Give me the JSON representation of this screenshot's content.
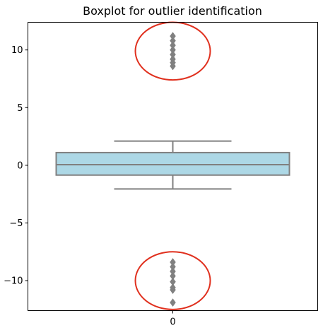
{
  "chart_data": {
    "type": "boxplot",
    "title": "Boxplot for outlier identification",
    "xlabel": "",
    "ylabel": "",
    "categories": [
      "0"
    ],
    "ylim": [
      -12.6,
      12.4
    ],
    "yticks": [
      -10,
      -5,
      0,
      5,
      10
    ],
    "ytick_labels": [
      "−10",
      "−5",
      "0",
      "5",
      "10"
    ],
    "box": {
      "q1": -0.85,
      "median": 0.05,
      "q3": 1.1,
      "whisker_low": -2.05,
      "whisker_high": 2.1
    },
    "outliers": [
      8.6,
      8.9,
      9.2,
      9.6,
      10.0,
      10.4,
      10.8,
      11.2,
      -8.4,
      -8.8,
      -9.2,
      -9.6,
      -10.1,
      -10.6,
      -10.8,
      -11.9
    ],
    "highlight_ellipses": [
      {
        "center_y": 9.9,
        "half_height": 2.5
      },
      {
        "center_y": -10.0,
        "half_height": 2.5
      }
    ],
    "colors": {
      "box_fill": "#add8e6",
      "line": "#808080",
      "outlier": "#808080",
      "highlight": "#e0301e"
    },
    "grid": false
  }
}
